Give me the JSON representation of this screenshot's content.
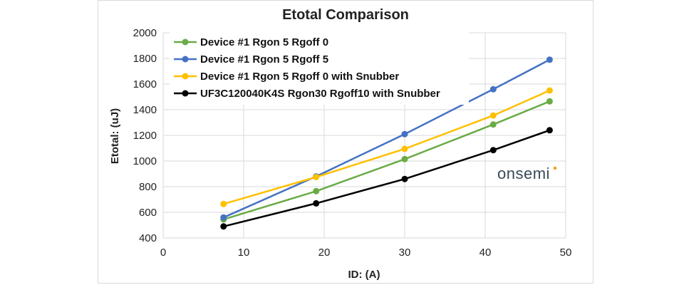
{
  "chart_data": {
    "type": "line",
    "title": "Etotal Comparison",
    "xlabel": "ID: (A)",
    "ylabel": "Etotal: (uJ)",
    "xlim": [
      0,
      50
    ],
    "ylim": [
      400,
      2000
    ],
    "xticks": [
      0,
      10,
      20,
      30,
      40,
      50
    ],
    "yticks": [
      400,
      600,
      800,
      1000,
      1200,
      1400,
      1600,
      1800,
      2000
    ],
    "grid": true,
    "legend_position": "top-left",
    "series": [
      {
        "name": "Device #1 Rgon 5 Rgoff 0",
        "color": "#6aab46",
        "x": [
          7.5,
          19,
          30,
          41,
          48
        ],
        "y": [
          545,
          765,
          1015,
          1285,
          1465
        ]
      },
      {
        "name": "Device #1 Rgon 5 Rgoff 5",
        "color": "#4472c4",
        "x": [
          7.5,
          19,
          30,
          41,
          48
        ],
        "y": [
          560,
          880,
          1210,
          1560,
          1790
        ]
      },
      {
        "name": "Device #1 Rgon 5 Rgoff 0 with Snubber",
        "color": "#ffc000",
        "x": [
          7.5,
          19,
          30,
          41,
          48
        ],
        "y": [
          665,
          875,
          1095,
          1355,
          1550
        ]
      },
      {
        "name": "UF3C120040K4S Rgon30 Rgoff10 with Snubber",
        "color": "#000000",
        "x": [
          7.5,
          19,
          30,
          41,
          48
        ],
        "y": [
          490,
          670,
          860,
          1085,
          1240
        ]
      }
    ]
  },
  "brand_logo": {
    "text": "onsemi",
    "accent_color": "#f39c12",
    "color": "#3a4a57"
  }
}
